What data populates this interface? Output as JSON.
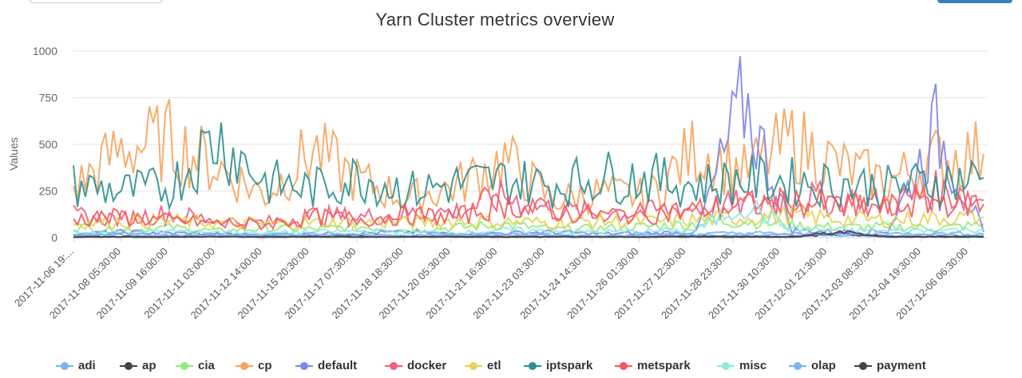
{
  "chart_data": {
    "type": "line",
    "title": "Yarn Cluster metrics overview",
    "ylabel": "Values",
    "xlabel": "",
    "ylim": [
      0,
      1000
    ],
    "yticks": [
      0,
      250,
      500,
      750,
      1000
    ],
    "grid": true,
    "legend_placement": "bottom",
    "x_tick_labels": [
      "2017-11-06 19:...",
      "2017-11-08 05:30:00",
      "2017-11-09 16:00:00",
      "2017-11-11 03:00:00",
      "2017-11-12 14:00:00",
      "2017-11-15 20:30:00",
      "2017-11-17 07:30:00",
      "2017-11-18 18:30:00",
      "2017-11-20 05:30:00",
      "2017-11-21 16:30:00",
      "2017-11-23 03:30:00",
      "2017-11-24 14:30:00",
      "2017-11-26 01:30:00",
      "2017-11-27 12:30:00",
      "2017-11-28 23:30:00",
      "2017-11-30 10:30:00",
      "2017-12-01 21:30:00",
      "2017-12-03 08:30:00",
      "2017-12-04 19:30:00",
      "2017-12-06 06:30:00"
    ],
    "series": [
      {
        "name": "adi",
        "color": "#7cb5ec",
        "values": [
          10,
          15,
          8,
          20,
          12,
          9,
          14,
          11,
          18,
          10,
          13,
          9,
          16,
          12,
          10,
          14,
          11,
          9,
          15,
          12
        ]
      },
      {
        "name": "ap",
        "color": "#434348",
        "values": [
          5,
          6,
          4,
          8,
          5,
          6,
          7,
          5,
          6,
          4,
          5,
          6,
          5,
          7,
          5,
          6,
          20,
          5,
          6,
          5
        ]
      },
      {
        "name": "cia",
        "color": "#90ed7d",
        "values": [
          60,
          40,
          55,
          35,
          50,
          45,
          60,
          40,
          55,
          70,
          45,
          50,
          60,
          75,
          90,
          65,
          55,
          60,
          50,
          70
        ]
      },
      {
        "name": "cp",
        "color": "#f7a35c",
        "values": [
          260,
          480,
          520,
          380,
          230,
          470,
          300,
          210,
          280,
          420,
          200,
          240,
          220,
          480,
          350,
          520,
          380,
          300,
          420,
          450
        ]
      },
      {
        "name": "default",
        "color": "#8085e9",
        "values": [
          20,
          30,
          25,
          20,
          15,
          20,
          25,
          30,
          20,
          25,
          30,
          20,
          25,
          30,
          740,
          40,
          30,
          35,
          580,
          30
        ]
      },
      {
        "name": "docker",
        "color": "#f15c80",
        "values": [
          120,
          100,
          130,
          90,
          80,
          120,
          110,
          130,
          140,
          220,
          150,
          130,
          140,
          160,
          180,
          220,
          200,
          180,
          250,
          200
        ]
      },
      {
        "name": "etl",
        "color": "#e4d354",
        "values": [
          80,
          85,
          90,
          80,
          75,
          80,
          85,
          80,
          90,
          85,
          80,
          90,
          85,
          95,
          110,
          120,
          100,
          95,
          105,
          110
        ]
      },
      {
        "name": "iptspark",
        "color": "#2b908f",
        "values": [
          280,
          250,
          270,
          540,
          300,
          260,
          330,
          250,
          290,
          310,
          280,
          330,
          320,
          280,
          310,
          300,
          290,
          270,
          300,
          320
        ]
      },
      {
        "name": "metspark",
        "color": "#f45b5b",
        "values": [
          100,
          110,
          90,
          80,
          70,
          110,
          100,
          120,
          110,
          180,
          140,
          120,
          130,
          150,
          170,
          190,
          170,
          160,
          200,
          180
        ]
      },
      {
        "name": "misc",
        "color": "#91e8e1",
        "values": [
          30,
          25,
          35,
          30,
          25,
          30,
          35,
          30,
          25,
          40,
          35,
          30,
          35,
          40,
          180,
          45,
          40,
          35,
          40,
          45
        ]
      },
      {
        "name": "olap",
        "color": "#7cb5ec",
        "values": [
          15,
          20,
          15,
          10,
          15,
          20,
          15,
          10,
          15,
          20,
          15,
          10,
          15,
          20,
          25,
          20,
          15,
          20,
          25,
          20
        ]
      },
      {
        "name": "payment",
        "color": "#434348",
        "values": [
          3,
          4,
          3,
          5,
          3,
          4,
          3,
          4,
          5,
          3,
          4,
          3,
          4,
          5,
          4,
          3,
          30,
          4,
          5,
          4
        ]
      }
    ]
  }
}
